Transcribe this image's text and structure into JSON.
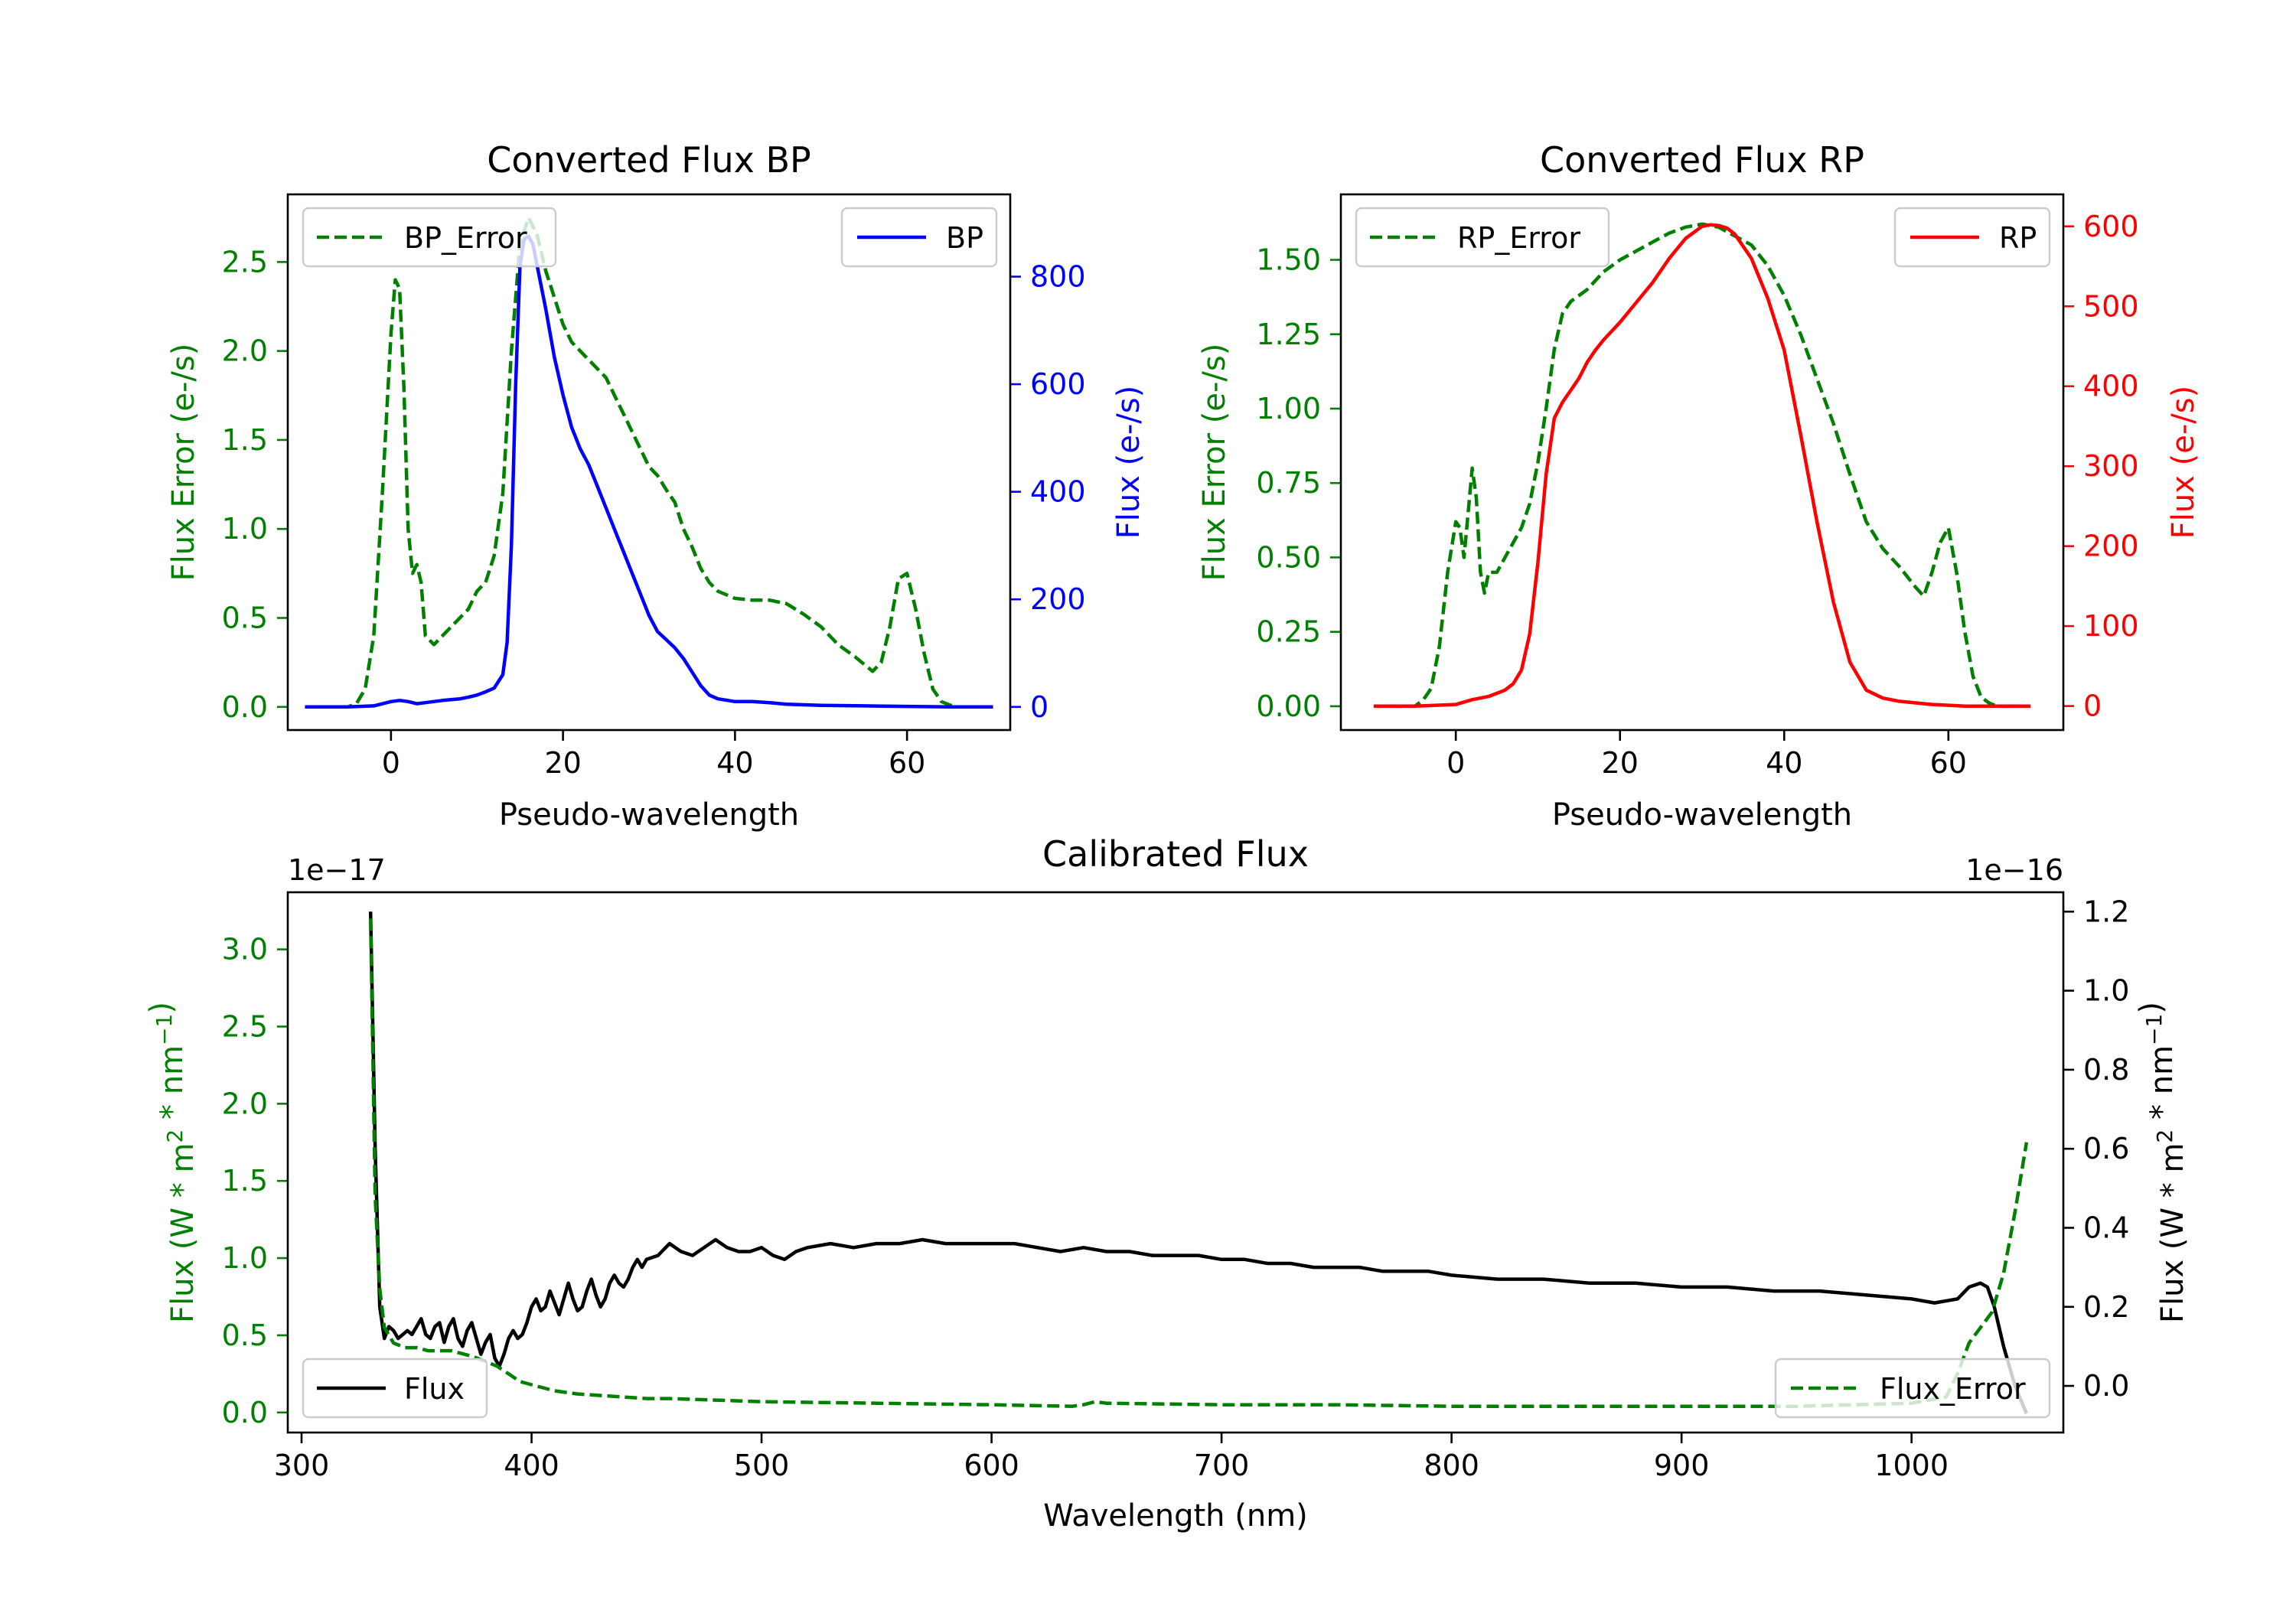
{
  "colors": {
    "error": "#008000",
    "bp": "#0000ff",
    "rp": "#ff0000",
    "flux": "#000000"
  },
  "chart_data": [
    {
      "id": "bp",
      "type": "line",
      "title": "Converted Flux BP",
      "xlabel": "Pseudo-wavelength",
      "ylabel_left": "Flux Error (e-/s)",
      "ylabel_right": "Flux (e-/s)",
      "xlim": [
        -12,
        72
      ],
      "ylim_left": [
        -0.13,
        2.88
      ],
      "ylim_right": [
        -43,
        953
      ],
      "xticks": [
        0,
        20,
        40,
        60
      ],
      "yticks_left": [
        0.0,
        0.5,
        1.0,
        1.5,
        2.0,
        2.5
      ],
      "ytick_labels_left": [
        "0.0",
        "0.5",
        "1.0",
        "1.5",
        "2.0",
        "2.5"
      ],
      "yticks_right": [
        0,
        200,
        400,
        600,
        800
      ],
      "ytick_labels_right": [
        "0",
        "200",
        "400",
        "600",
        "800"
      ],
      "legend_left": "top-left",
      "legend_right": "top-right",
      "series": [
        {
          "name": "BP_Error",
          "axis": "left",
          "style": "dashed",
          "color": "#008000",
          "x": [
            -10,
            -5,
            -4,
            -3,
            -2,
            -1,
            0,
            0.5,
            1,
            1.5,
            2,
            2.5,
            3,
            3.5,
            4,
            5,
            6,
            7,
            8,
            9,
            10,
            11,
            12,
            13,
            14,
            15,
            16,
            17,
            18,
            19,
            20,
            21,
            22,
            23,
            24,
            25,
            26,
            27,
            28,
            29,
            30,
            31,
            32,
            33,
            34,
            35,
            36,
            37,
            38,
            40,
            42,
            44,
            46,
            48,
            50,
            52,
            54,
            56,
            57,
            58,
            59,
            60,
            61,
            62,
            63,
            64,
            65,
            66,
            68,
            70
          ],
          "y": [
            0,
            0,
            0.02,
            0.1,
            0.4,
            1.2,
            2.1,
            2.4,
            2.35,
            1.8,
            1.0,
            0.75,
            0.8,
            0.7,
            0.4,
            0.35,
            0.4,
            0.45,
            0.5,
            0.55,
            0.65,
            0.7,
            0.85,
            1.2,
            2.0,
            2.6,
            2.75,
            2.65,
            2.45,
            2.3,
            2.15,
            2.05,
            2.0,
            1.95,
            1.9,
            1.85,
            1.75,
            1.65,
            1.55,
            1.45,
            1.35,
            1.3,
            1.22,
            1.15,
            1.0,
            0.9,
            0.78,
            0.7,
            0.65,
            0.61,
            0.6,
            0.6,
            0.58,
            0.52,
            0.45,
            0.35,
            0.28,
            0.2,
            0.25,
            0.45,
            0.72,
            0.75,
            0.55,
            0.3,
            0.1,
            0.03,
            0.01,
            0,
            0,
            0
          ]
        },
        {
          "name": "BP",
          "axis": "right",
          "style": "solid",
          "color": "#0000ff",
          "x": [
            -10,
            -5,
            -2,
            0,
            1,
            2,
            3,
            4,
            6,
            8,
            9,
            10,
            11,
            12,
            13,
            13.5,
            14,
            14.5,
            15,
            15.5,
            16,
            16.5,
            17,
            18,
            19,
            20,
            21,
            22,
            23,
            24,
            25,
            26,
            27,
            28,
            29,
            30,
            31,
            32,
            33,
            34,
            35,
            36,
            37,
            38,
            40,
            42,
            44,
            46,
            48,
            50,
            55,
            60,
            65,
            70
          ],
          "y": [
            0,
            0,
            2,
            10,
            12,
            10,
            6,
            8,
            12,
            15,
            18,
            22,
            28,
            35,
            60,
            120,
            300,
            600,
            820,
            870,
            875,
            860,
            820,
            740,
            650,
            580,
            520,
            480,
            450,
            410,
            370,
            330,
            290,
            250,
            210,
            170,
            140,
            125,
            110,
            90,
            65,
            40,
            22,
            15,
            10,
            10,
            8,
            5,
            4,
            3,
            2,
            1,
            0,
            0
          ]
        }
      ]
    },
    {
      "id": "rp",
      "type": "line",
      "title": "Converted Flux RP",
      "xlabel": "Pseudo-wavelength",
      "ylabel_left": "Flux Error (e-/s)",
      "ylabel_right": "Flux (e-/s)",
      "xlim": [
        -14,
        74
      ],
      "ylim_left": [
        -0.08,
        1.72
      ],
      "ylim_right": [
        -30,
        640
      ],
      "xticks": [
        0,
        20,
        40,
        60
      ],
      "yticks_left": [
        0.0,
        0.25,
        0.5,
        0.75,
        1.0,
        1.25,
        1.5
      ],
      "ytick_labels_left": [
        "0.00",
        "0.25",
        "0.50",
        "0.75",
        "1.00",
        "1.25",
        "1.50"
      ],
      "yticks_right": [
        0,
        100,
        200,
        300,
        400,
        500,
        600
      ],
      "ytick_labels_right": [
        "0",
        "100",
        "200",
        "300",
        "400",
        "500",
        "600"
      ],
      "legend_left": "top-left",
      "legend_right": "top-right",
      "series": [
        {
          "name": "RP_Error",
          "axis": "left",
          "style": "dashed",
          "color": "#008000",
          "x": [
            -10,
            -5,
            -4,
            -3,
            -2,
            -1,
            0,
            0.5,
            1,
            1.5,
            2,
            2.5,
            3,
            3.5,
            4,
            5,
            6,
            7,
            8,
            9,
            10,
            11,
            12,
            13,
            14,
            16,
            18,
            20,
            22,
            24,
            26,
            28,
            30,
            32,
            34,
            36,
            38,
            40,
            42,
            44,
            46,
            48,
            50,
            52,
            54,
            56,
            57,
            58,
            59,
            60,
            61,
            62,
            63,
            64,
            65,
            66,
            68,
            70
          ],
          "y": [
            0,
            0,
            0.02,
            0.06,
            0.2,
            0.45,
            0.62,
            0.6,
            0.5,
            0.65,
            0.8,
            0.7,
            0.45,
            0.38,
            0.45,
            0.45,
            0.5,
            0.55,
            0.6,
            0.68,
            0.82,
            1.0,
            1.2,
            1.32,
            1.36,
            1.4,
            1.46,
            1.5,
            1.53,
            1.56,
            1.59,
            1.61,
            1.62,
            1.61,
            1.58,
            1.55,
            1.48,
            1.38,
            1.25,
            1.1,
            0.95,
            0.78,
            0.62,
            0.53,
            0.47,
            0.4,
            0.37,
            0.45,
            0.55,
            0.6,
            0.45,
            0.25,
            0.1,
            0.03,
            0.01,
            0,
            0,
            0
          ]
        },
        {
          "name": "RP",
          "axis": "right",
          "style": "solid",
          "color": "#ff0000",
          "x": [
            -10,
            -5,
            0,
            2,
            4,
            6,
            7,
            8,
            9,
            10,
            11,
            12,
            13,
            14,
            15,
            16,
            17,
            18,
            20,
            22,
            24,
            26,
            28,
            30,
            31,
            32,
            33,
            34,
            36,
            38,
            40,
            42,
            44,
            46,
            48,
            50,
            52,
            54,
            56,
            58,
            60,
            62,
            65,
            70
          ],
          "y": [
            0,
            0,
            2,
            8,
            12,
            20,
            28,
            45,
            90,
            180,
            290,
            360,
            380,
            395,
            410,
            430,
            445,
            458,
            480,
            505,
            530,
            560,
            585,
            600,
            602,
            601,
            598,
            590,
            560,
            510,
            445,
            340,
            230,
            130,
            55,
            20,
            10,
            6,
            4,
            2,
            1,
            0,
            0,
            0
          ]
        }
      ]
    },
    {
      "id": "calibrated",
      "type": "line",
      "title": "Calibrated Flux",
      "xlabel": "Wavelength (nm)",
      "ylabel_left": "Flux (W * m^2 * nm^-1)",
      "ylabel_right": "Flux (W * m^2 * nm^-1)",
      "offset_left": "1e−17",
      "offset_right": "1e−16",
      "xlim": [
        294,
        1066
      ],
      "ylim_left": [
        -0.13,
        3.37
      ],
      "ylim_right": [
        -0.118,
        1.249
      ],
      "xticks": [
        300,
        400,
        500,
        600,
        700,
        800,
        900,
        1000
      ],
      "yticks_left": [
        0.0,
        0.5,
        1.0,
        1.5,
        2.0,
        2.5,
        3.0
      ],
      "ytick_labels_left": [
        "0.0",
        "0.5",
        "1.0",
        "1.5",
        "2.0",
        "2.5",
        "3.0"
      ],
      "yticks_right": [
        0.0,
        0.2,
        0.4,
        0.6,
        0.8,
        1.0,
        1.2
      ],
      "ytick_labels_right": [
        "0.0",
        "0.2",
        "0.4",
        "0.6",
        "0.8",
        "1.0",
        "1.2"
      ],
      "legend_left": "lower-left",
      "legend_right": "lower-right",
      "series": [
        {
          "name": "Flux",
          "axis": "right",
          "style": "solid",
          "color": "#000000",
          "x": [
            330,
            332,
            334,
            336,
            338,
            340,
            342,
            344,
            346,
            348,
            350,
            352,
            354,
            356,
            358,
            360,
            362,
            364,
            366,
            368,
            370,
            372,
            374,
            376,
            378,
            380,
            382,
            384,
            386,
            388,
            390,
            392,
            394,
            396,
            398,
            400,
            402,
            404,
            406,
            408,
            410,
            412,
            414,
            416,
            418,
            420,
            422,
            424,
            426,
            428,
            430,
            432,
            434,
            436,
            438,
            440,
            442,
            444,
            446,
            448,
            450,
            455,
            460,
            465,
            470,
            475,
            480,
            485,
            490,
            495,
            500,
            505,
            510,
            515,
            520,
            530,
            540,
            550,
            560,
            570,
            580,
            590,
            600,
            610,
            620,
            630,
            640,
            650,
            660,
            670,
            680,
            690,
            700,
            710,
            720,
            730,
            740,
            750,
            760,
            770,
            780,
            790,
            800,
            820,
            840,
            860,
            880,
            900,
            920,
            940,
            960,
            980,
            1000,
            1010,
            1020,
            1025,
            1030,
            1033,
            1036,
            1040,
            1045,
            1050
          ],
          "y": [
            1.2,
            0.6,
            0.2,
            0.12,
            0.15,
            0.14,
            0.12,
            0.13,
            0.14,
            0.13,
            0.15,
            0.17,
            0.13,
            0.12,
            0.15,
            0.16,
            0.11,
            0.15,
            0.17,
            0.12,
            0.1,
            0.14,
            0.16,
            0.12,
            0.08,
            0.11,
            0.13,
            0.07,
            0.05,
            0.08,
            0.12,
            0.14,
            0.12,
            0.13,
            0.16,
            0.2,
            0.22,
            0.19,
            0.2,
            0.24,
            0.21,
            0.18,
            0.22,
            0.26,
            0.22,
            0.19,
            0.2,
            0.24,
            0.27,
            0.23,
            0.2,
            0.22,
            0.26,
            0.28,
            0.26,
            0.25,
            0.27,
            0.3,
            0.32,
            0.3,
            0.32,
            0.33,
            0.36,
            0.34,
            0.33,
            0.35,
            0.37,
            0.35,
            0.34,
            0.34,
            0.35,
            0.33,
            0.32,
            0.34,
            0.35,
            0.36,
            0.35,
            0.36,
            0.36,
            0.37,
            0.36,
            0.36,
            0.36,
            0.36,
            0.35,
            0.34,
            0.35,
            0.34,
            0.34,
            0.33,
            0.33,
            0.33,
            0.32,
            0.32,
            0.31,
            0.31,
            0.3,
            0.3,
            0.3,
            0.29,
            0.29,
            0.29,
            0.28,
            0.27,
            0.27,
            0.26,
            0.26,
            0.25,
            0.25,
            0.24,
            0.24,
            0.23,
            0.22,
            0.21,
            0.22,
            0.25,
            0.26,
            0.25,
            0.2,
            0.1,
            0.0,
            -0.07
          ]
        },
        {
          "name": "Flux_Error",
          "axis": "left",
          "style": "dashed",
          "color": "#008000",
          "x": [
            330,
            332,
            334,
            336,
            338,
            340,
            345,
            350,
            355,
            360,
            365,
            370,
            375,
            380,
            385,
            390,
            395,
            400,
            405,
            410,
            415,
            420,
            430,
            440,
            450,
            460,
            480,
            500,
            550,
            600,
            635,
            640,
            645,
            650,
            700,
            750,
            800,
            850,
            900,
            950,
            1000,
            1015,
            1020,
            1025,
            1030,
            1035,
            1040,
            1045,
            1050
          ],
          "y": [
            3.2,
            1.4,
            0.8,
            0.55,
            0.5,
            0.45,
            0.42,
            0.42,
            0.4,
            0.4,
            0.4,
            0.38,
            0.36,
            0.33,
            0.3,
            0.25,
            0.2,
            0.18,
            0.16,
            0.14,
            0.13,
            0.12,
            0.11,
            0.1,
            0.09,
            0.09,
            0.08,
            0.07,
            0.06,
            0.05,
            0.04,
            0.05,
            0.07,
            0.06,
            0.05,
            0.05,
            0.04,
            0.04,
            0.04,
            0.04,
            0.06,
            0.1,
            0.25,
            0.45,
            0.55,
            0.65,
            0.9,
            1.3,
            1.75
          ]
        }
      ]
    }
  ]
}
